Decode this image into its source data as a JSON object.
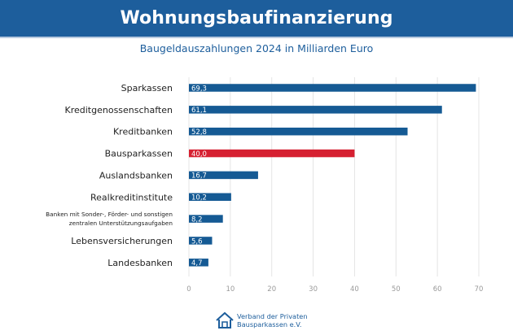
{
  "header": {
    "title": "Wohnungsbaufinanzierung",
    "subtitle": "Baugeldauszahlungen 2024 in Milliarden Euro"
  },
  "colors": {
    "banner": "#1d5e9c",
    "bar": "#155a94",
    "highlight": "#d62031",
    "text": "#222222",
    "grid": "#e4e4e4",
    "tick": "#9a9a9a"
  },
  "footer": {
    "logo_icon": "house-icon",
    "line1": "Verband der Privaten",
    "line2": "Bausparkassen e.V."
  },
  "chart_data": {
    "type": "bar",
    "orientation": "horizontal",
    "title": "Baugeldauszahlungen 2024 in Milliarden Euro",
    "categories": [
      "Sparkassen",
      "Kreditgenossenschaften",
      "Kreditbanken",
      "Bausparkassen",
      "Auslandsbanken",
      "Realkreditinstitute",
      "Banken mit Sonder-, Förder- und sonstigen zentralen Unterstützungsaufgaben",
      "Lebensversicherungen",
      "Landesbanken"
    ],
    "category_lines": [
      [
        "Sparkassen"
      ],
      [
        "Kreditgenossenschaften"
      ],
      [
        "Kreditbanken"
      ],
      [
        "Bausparkassen"
      ],
      [
        "Auslandsbanken"
      ],
      [
        "Realkreditinstitute"
      ],
      [
        "Banken mit Sonder-, Förder- und sonstigen",
        "zentralen Unterstützungsaufgaben"
      ],
      [
        "Lebensversicherungen"
      ],
      [
        "Landesbanken"
      ]
    ],
    "values": [
      69.3,
      61.1,
      52.8,
      40.0,
      16.7,
      10.2,
      8.2,
      5.6,
      4.7
    ],
    "value_labels": [
      "69,3",
      "61,1",
      "52,8",
      "40,0",
      "16,7",
      "10,2",
      "8,2",
      "5,6",
      "4,7"
    ],
    "highlight_index": 3,
    "xlim": [
      0,
      70
    ],
    "x_ticks": [
      0,
      10,
      20,
      30,
      40,
      50,
      60,
      70
    ],
    "xlabel": "",
    "ylabel": "",
    "grid": true,
    "legend": "none"
  }
}
